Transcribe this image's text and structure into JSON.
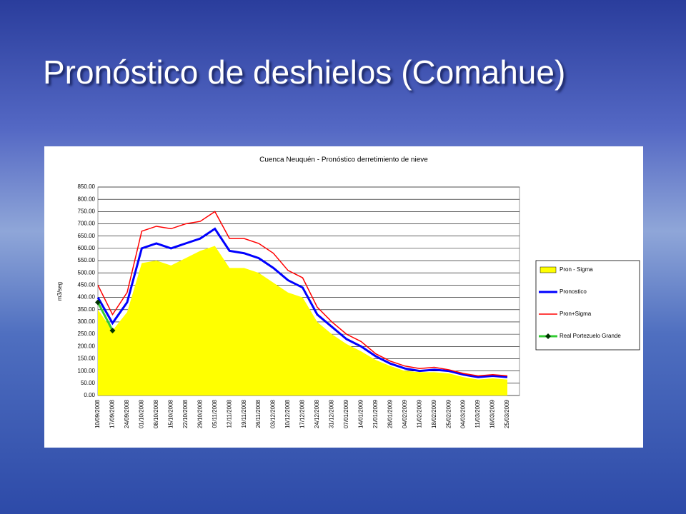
{
  "slide_title": "Pronóstico de deshielos (Comahue)",
  "chart_data": {
    "type": "line",
    "title": "Cuenca Neuquén - Pronóstico derretimiento de nieve",
    "y_label": "m3/seg",
    "categories": [
      "10/09/2008",
      "17/09/2008",
      "24/09/2008",
      "01/10/2008",
      "08/10/2008",
      "15/10/2008",
      "22/10/2008",
      "29/10/2008",
      "05/11/2008",
      "12/11/2008",
      "19/11/2008",
      "26/11/2008",
      "03/12/2008",
      "10/12/2008",
      "17/12/2008",
      "24/12/2008",
      "31/12/2008",
      "07/01/2009",
      "14/01/2009",
      "21/01/2009",
      "28/01/2009",
      "04/02/2009",
      "11/02/2009",
      "18/02/2009",
      "25/02/2009",
      "04/03/2009",
      "11/03/2009",
      "18/03/2009",
      "25/03/2009"
    ],
    "series": [
      {
        "name": "Pron - Sigma",
        "color": "#ffff00",
        "area": true,
        "values": [
          350,
          265,
          340,
          540,
          550,
          530,
          560,
          590,
          610,
          520,
          520,
          500,
          460,
          420,
          400,
          300,
          250,
          210,
          180,
          145,
          120,
          100,
          95,
          95,
          90,
          75,
          65,
          70,
          65
        ]
      },
      {
        "name": "Pronostico",
        "color": "#0000ff",
        "width": 3,
        "values": [
          400,
          295,
          380,
          600,
          620,
          600,
          620,
          640,
          680,
          590,
          580,
          560,
          520,
          470,
          440,
          330,
          280,
          230,
          200,
          160,
          130,
          110,
          100,
          105,
          100,
          85,
          75,
          80,
          75
        ]
      },
      {
        "name": "Pron+Sigma",
        "color": "#ff0000",
        "width": 1.5,
        "values": [
          450,
          330,
          420,
          670,
          690,
          680,
          700,
          710,
          750,
          640,
          640,
          620,
          580,
          510,
          480,
          360,
          300,
          250,
          220,
          170,
          140,
          120,
          110,
          115,
          105,
          90,
          80,
          85,
          80
        ]
      },
      {
        "name": "Real Portezuelo Grande",
        "color": "#33cc33",
        "markers": true,
        "width": 3,
        "values": [
          380,
          265,
          null,
          null,
          null,
          null,
          null,
          null,
          null,
          null,
          null,
          null,
          null,
          null,
          null,
          null,
          null,
          null,
          null,
          null,
          null,
          null,
          null,
          null,
          null,
          null,
          null,
          null,
          null
        ]
      }
    ],
    "ylim": [
      0,
      850
    ],
    "yticks": [
      {
        "value": 0,
        "label": "0.00"
      },
      {
        "value": 50,
        "label": "50.00"
      },
      {
        "value": 100,
        "label": "100.00"
      },
      {
        "value": 150,
        "label": "150.00"
      },
      {
        "value": 200,
        "label": "200.00"
      },
      {
        "value": 250,
        "label": "250.00"
      },
      {
        "value": 300,
        "label": "300.00"
      },
      {
        "value": 350,
        "label": "350.00"
      },
      {
        "value": 400,
        "label": "400.00"
      },
      {
        "value": 450,
        "label": "450.00"
      },
      {
        "value": 500,
        "label": "500.00"
      },
      {
        "value": 550,
        "label": "550.00"
      },
      {
        "value": 600,
        "label": "600.00"
      },
      {
        "value": 650,
        "label": "650.00"
      },
      {
        "value": 700,
        "label": "700.00"
      },
      {
        "value": 750,
        "label": "750.00"
      },
      {
        "value": 800,
        "label": "800.00"
      },
      {
        "value": 850,
        "label": "850.00"
      }
    ],
    "grid": true,
    "legend": "right"
  }
}
